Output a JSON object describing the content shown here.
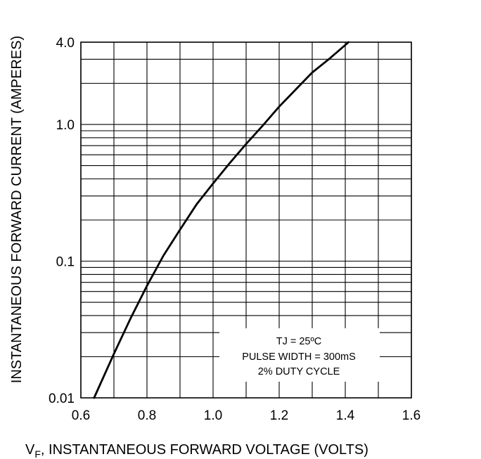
{
  "chart_data": {
    "type": "line",
    "title": "",
    "xlabel": {
      "symbol": "V",
      "subscript": "F",
      "text": ", INSTANTANEOUS FORWARD VOLTAGE (VOLTS)"
    },
    "ylabel": "INSTANTANEOUS FORWARD CURRENT (AMPERES)",
    "xlim": [
      0.6,
      1.6
    ],
    "ylim": [
      0.01,
      4.0
    ],
    "yscale": "log",
    "grid": true,
    "x_ticks": [
      0.6,
      0.8,
      1.0,
      1.2,
      1.4,
      1.6
    ],
    "x_tick_labels": [
      "0.6",
      "0.8",
      "1.0",
      "1.2",
      "1.4",
      "1.6"
    ],
    "y_ticks": [
      0.01,
      0.1,
      1.0,
      4.0
    ],
    "y_tick_labels": [
      "0.01",
      "0.1",
      "1.0",
      "4.0"
    ],
    "annotation": [
      "TJ = 25ºC",
      "PULSE WIDTH = 300mS",
      "2% DUTY CYCLE"
    ],
    "series": [
      {
        "x": [
          0.64,
          0.7,
          0.75,
          0.8,
          0.85,
          0.9,
          0.95,
          1.0,
          1.05,
          1.1,
          1.15,
          1.2,
          1.25,
          1.3,
          1.35,
          1.41
        ],
        "y": [
          0.01,
          0.021,
          0.038,
          0.066,
          0.11,
          0.17,
          0.26,
          0.37,
          0.52,
          0.72,
          0.98,
          1.35,
          1.8,
          2.4,
          3.0,
          4.0
        ]
      }
    ],
    "colors": {
      "line": "#000000",
      "grid": "#000000"
    }
  }
}
